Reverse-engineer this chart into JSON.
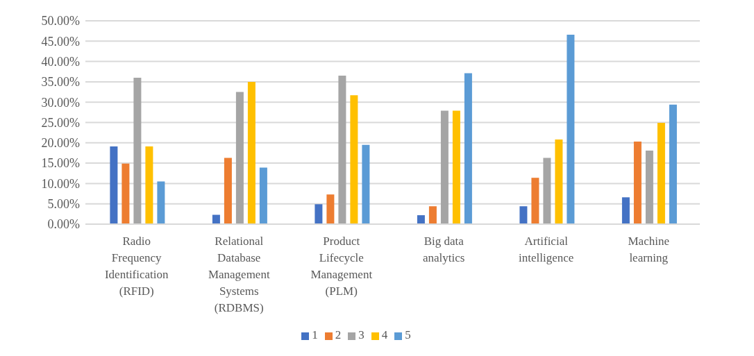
{
  "chart_data": {
    "type": "bar",
    "categories": [
      "Radio Frequency Identification (RFID)",
      "Relational Database Management Systems (RDBMS)",
      "Product Lifecycle Management (PLM)",
      "Big data analytics",
      "Artificial intelligence",
      "Machine learning"
    ],
    "series": [
      {
        "name": "1",
        "color": "#4472c4",
        "values": [
          19.1,
          2.3,
          4.9,
          2.2,
          4.4,
          6.6
        ]
      },
      {
        "name": "2",
        "color": "#ed7d31",
        "values": [
          14.9,
          16.3,
          7.3,
          4.4,
          11.4,
          20.3
        ]
      },
      {
        "name": "3",
        "color": "#a5a5a5",
        "values": [
          36.0,
          32.5,
          36.5,
          27.9,
          16.3,
          18.1
        ]
      },
      {
        "name": "4",
        "color": "#ffc000",
        "values": [
          19.1,
          35.0,
          31.7,
          27.9,
          20.8,
          24.9
        ]
      },
      {
        "name": "5",
        "color": "#5b9bd5",
        "values": [
          10.5,
          13.9,
          19.5,
          37.1,
          46.6,
          29.4
        ]
      }
    ],
    "ylim": [
      0,
      50
    ],
    "yticks": [
      {
        "value": 0,
        "label": "0.00%"
      },
      {
        "value": 5,
        "label": "5.00%"
      },
      {
        "value": 10,
        "label": "10.00%"
      },
      {
        "value": 15,
        "label": "15.00%"
      },
      {
        "value": 20,
        "label": "20.00%"
      },
      {
        "value": 25,
        "label": "25.00%"
      },
      {
        "value": 30,
        "label": "30.00%"
      },
      {
        "value": 35,
        "label": "35.00%"
      },
      {
        "value": 40,
        "label": "40.00%"
      },
      {
        "value": 45,
        "label": "45.00%"
      },
      {
        "value": 50,
        "label": "50.00%"
      }
    ],
    "grid": "y",
    "legend": "bottom"
  }
}
